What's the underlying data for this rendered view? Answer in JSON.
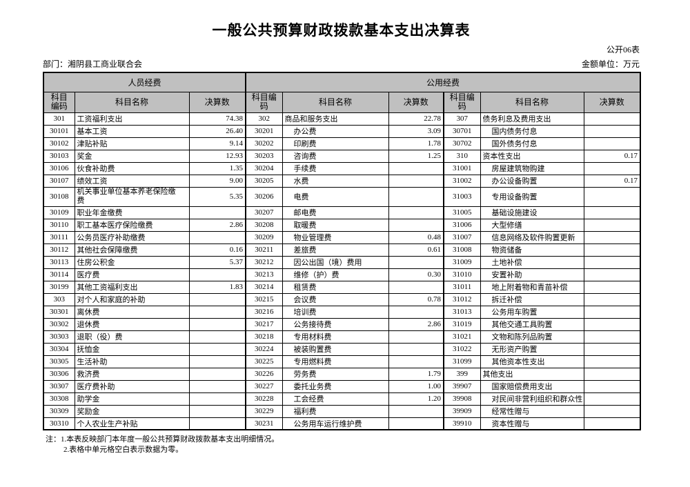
{
  "header": {
    "title": "一般公共预算财政拨款基本支出决算表",
    "sheet_code": "公开06表",
    "department": "部门：湘阴县工商业联合会",
    "unit": "金额单位：万元"
  },
  "table": {
    "group_headers": {
      "personnel": "人员经费",
      "public": "公用经费"
    },
    "column_headers": {
      "code": "科目编码",
      "name": "科目名称",
      "amount": "决算数"
    },
    "rows": [
      [
        "301",
        "工资福利支出",
        "74.38",
        "302",
        "商品和服务支出",
        "22.78",
        "307",
        "债务利息及费用支出",
        ""
      ],
      [
        "30101",
        "基本工资",
        "26.40",
        "30201",
        "办公费",
        "3.09",
        "30701",
        "国内债务付息",
        ""
      ],
      [
        "30102",
        "津贴补贴",
        "9.14",
        "30202",
        "印刷费",
        "1.78",
        "30702",
        "国外债务付息",
        ""
      ],
      [
        "30103",
        "奖金",
        "12.93",
        "30203",
        "咨询费",
        "1.25",
        "310",
        "资本性支出",
        "0.17"
      ],
      [
        "30106",
        "伙食补助费",
        "1.35",
        "30204",
        "手续费",
        "",
        "31001",
        "房屋建筑物购建",
        ""
      ],
      [
        "30107",
        "绩效工资",
        "9.00",
        "30205",
        "水费",
        "",
        "31002",
        "办公设备购置",
        "0.17"
      ],
      [
        "30108",
        "机关事业单位基本养老保险缴费",
        "5.35",
        "30206",
        "电费",
        "",
        "31003",
        "专用设备购置",
        ""
      ],
      [
        "30109",
        "职业年金缴费",
        "",
        "30207",
        "邮电费",
        "",
        "31005",
        "基础设施建设",
        ""
      ],
      [
        "30110",
        "职工基本医疗保险缴费",
        "2.86",
        "30208",
        "取暖费",
        "",
        "31006",
        "大型修缮",
        ""
      ],
      [
        "30111",
        "公务员医疗补助缴费",
        "",
        "30209",
        "物业管理费",
        "0.48",
        "31007",
        "信息网络及软件购置更新",
        ""
      ],
      [
        "30112",
        "其他社会保障缴费",
        "0.16",
        "30211",
        "差旅费",
        "0.61",
        "31008",
        "物资储备",
        ""
      ],
      [
        "30113",
        "住房公积金",
        "5.37",
        "30212",
        "因公出国（境）费用",
        "",
        "31009",
        "土地补偿",
        ""
      ],
      [
        "30114",
        "医疗费",
        "",
        "30213",
        "维修（护）费",
        "0.30",
        "31010",
        "安置补助",
        ""
      ],
      [
        "30199",
        "其他工资福利支出",
        "1.83",
        "30214",
        "租赁费",
        "",
        "31011",
        "地上附着物和青苗补偿",
        ""
      ],
      [
        "303",
        "对个人和家庭的补助",
        "",
        "30215",
        "会议费",
        "0.78",
        "31012",
        "拆迁补偿",
        ""
      ],
      [
        "30301",
        "离休费",
        "",
        "30216",
        "培训费",
        "",
        "31013",
        "公务用车购置",
        ""
      ],
      [
        "30302",
        "退休费",
        "",
        "30217",
        "公务接待费",
        "2.86",
        "31019",
        "其他交通工具购置",
        ""
      ],
      [
        "30303",
        "退职（役）费",
        "",
        "30218",
        "专用材料费",
        "",
        "31021",
        "文物和陈列品购置",
        ""
      ],
      [
        "30304",
        "抚恤金",
        "",
        "30224",
        "被装购置费",
        "",
        "31022",
        "无形资产购置",
        ""
      ],
      [
        "30305",
        "生活补助",
        "",
        "30225",
        "专用燃料费",
        "",
        "31099",
        "其他资本性支出",
        ""
      ],
      [
        "30306",
        "救济费",
        "",
        "30226",
        "劳务费",
        "1.79",
        "399",
        "其他支出",
        ""
      ],
      [
        "30307",
        "医疗费补助",
        "",
        "30227",
        "委托业务费",
        "1.00",
        "39907",
        "国家赔偿费用支出",
        ""
      ],
      [
        "30308",
        "助学金",
        "",
        "30228",
        "工会经费",
        "1.20",
        "39908",
        "对民间非营利组织和群众性自",
        ""
      ],
      [
        "30309",
        "奖励金",
        "",
        "30229",
        "福利费",
        "",
        "39909",
        "经常性赠与",
        ""
      ],
      [
        "30310",
        "个人农业生产补贴",
        "",
        "30231",
        "公务用车运行维护费",
        "",
        "39910",
        "资本性赠与",
        ""
      ]
    ]
  },
  "notes": {
    "line1": "注：1.本表反映部门本年度一般公共预算财政拨款基本支出明细情况。",
    "line2": "2.表格中单元格空白表示数据为零。"
  },
  "colors": {
    "header_bg": "#c0c0c0",
    "border": "#000000"
  }
}
